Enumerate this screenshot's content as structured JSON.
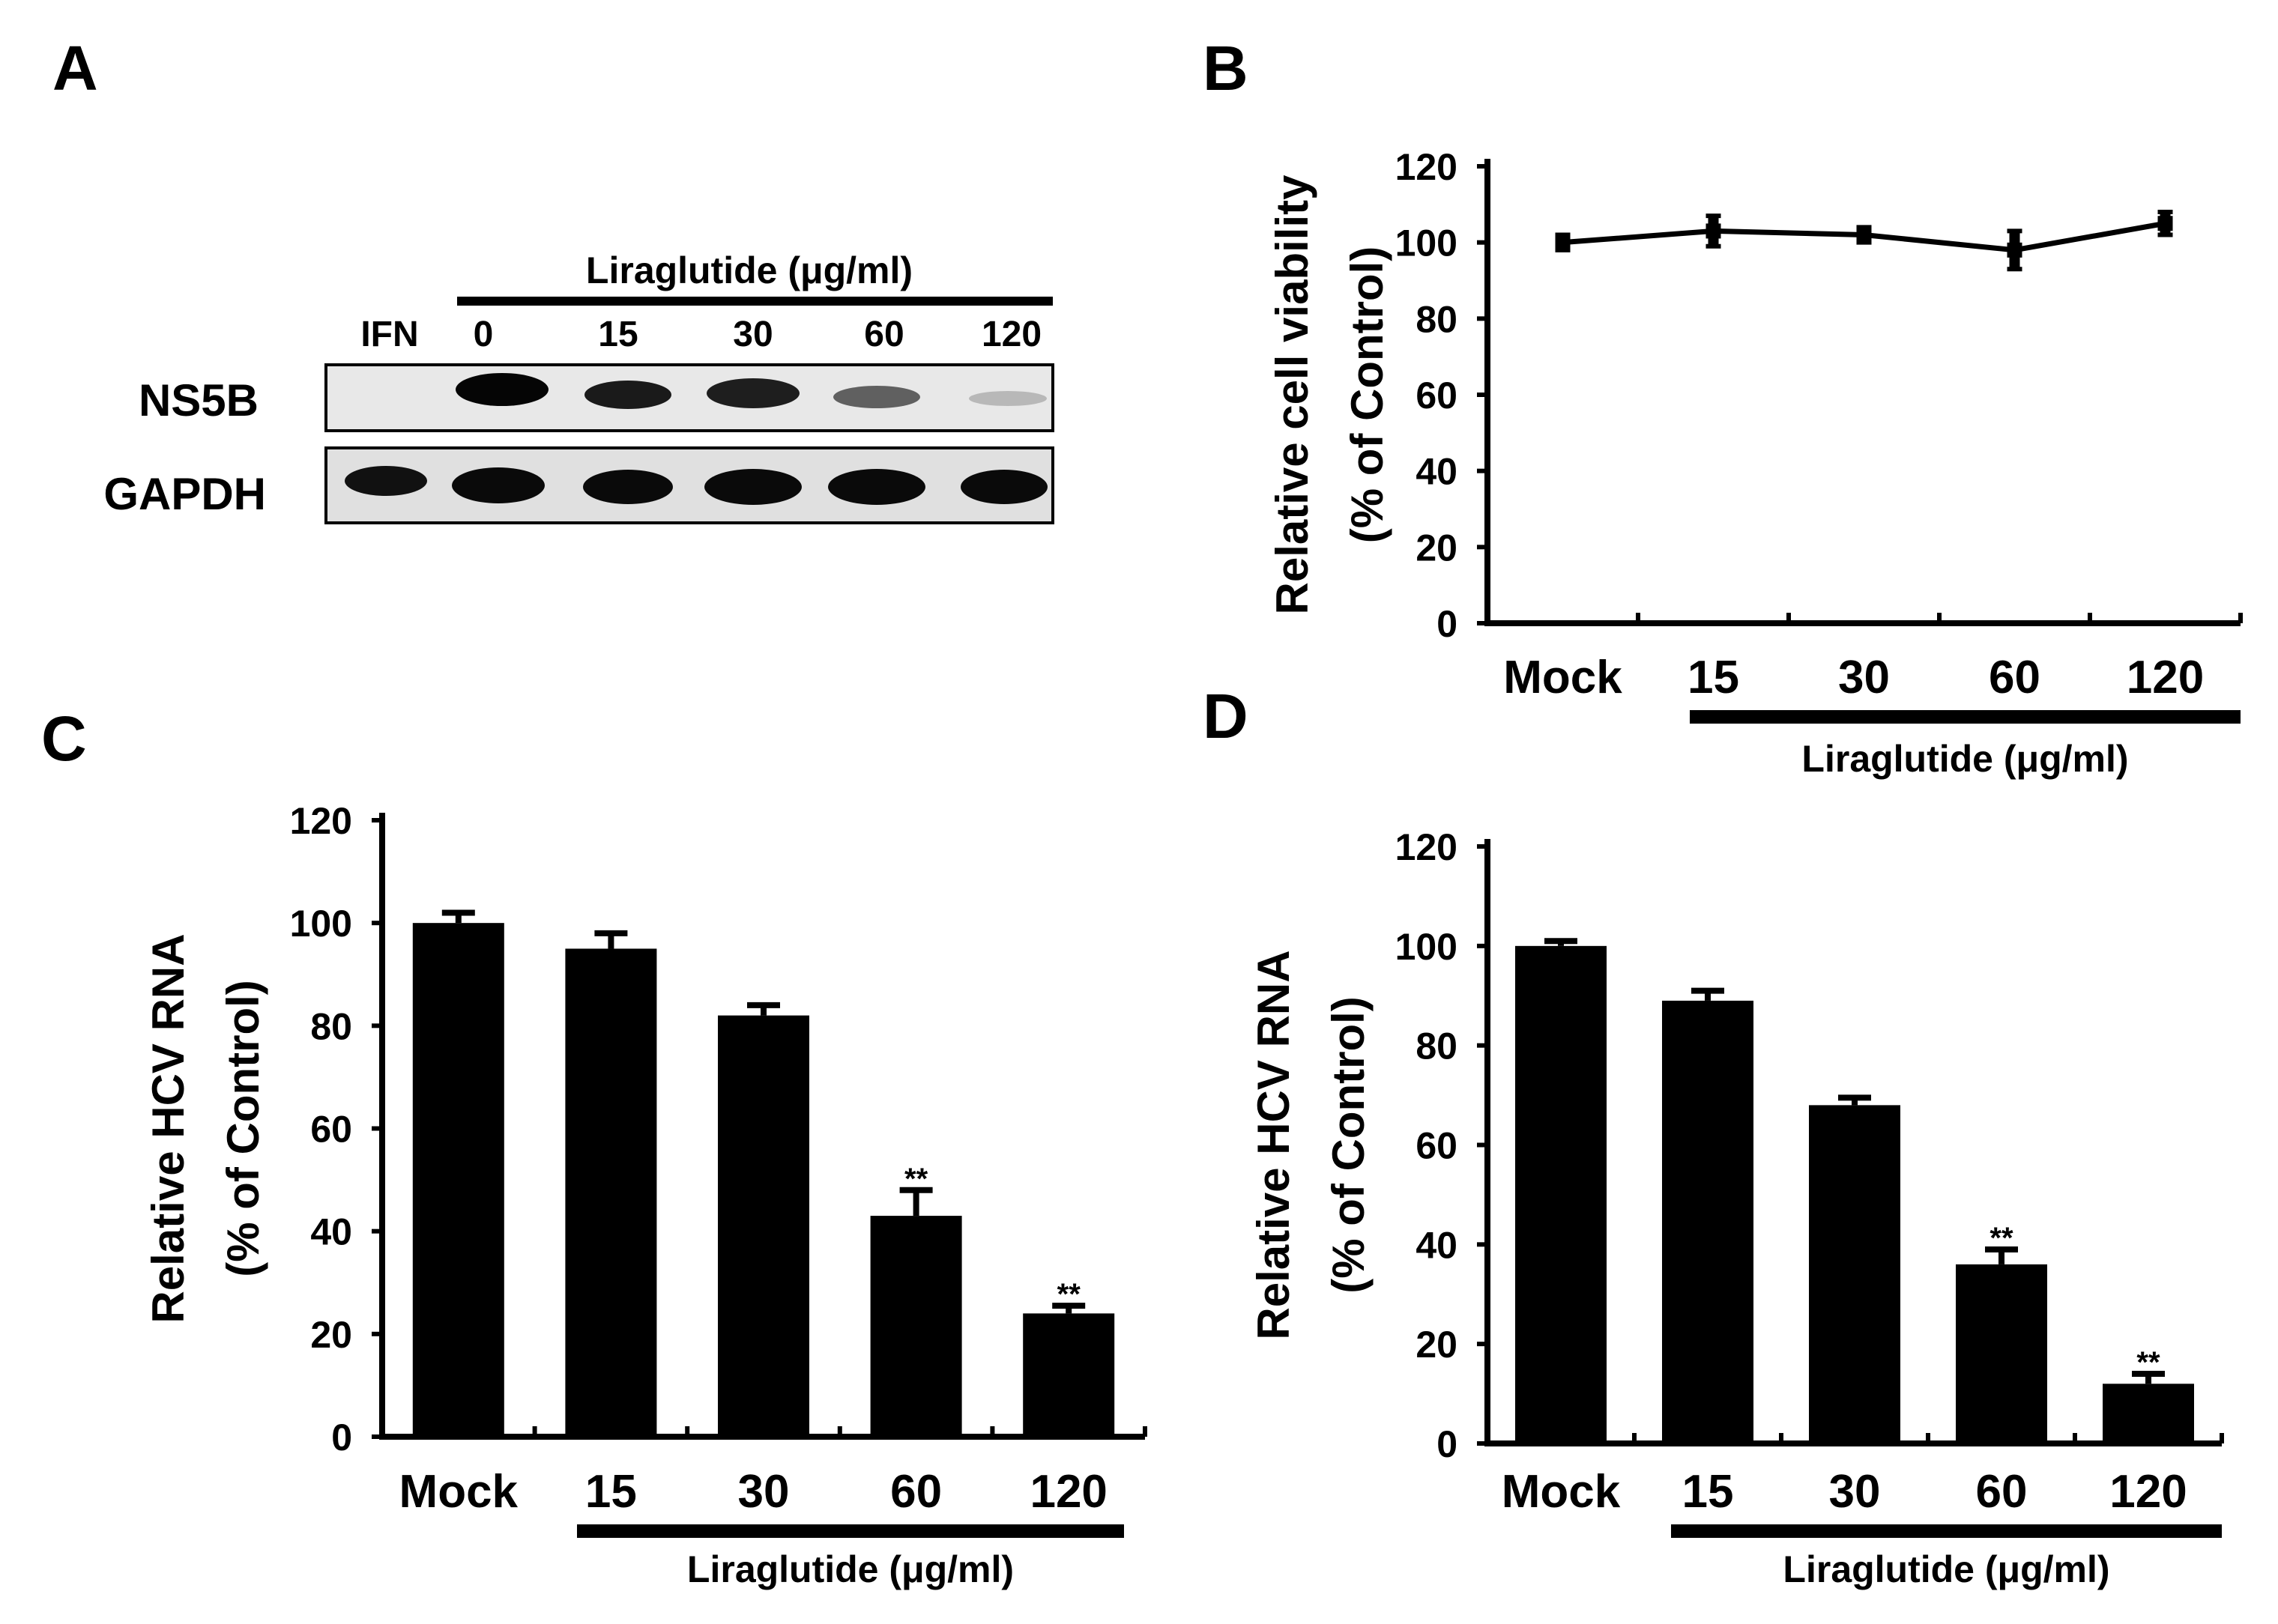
{
  "panels": {
    "a": {
      "letter": "A",
      "header": "Liraglutide (μg/ml)",
      "lanes": [
        "IFN",
        "0",
        "15",
        "30",
        "60",
        "120"
      ],
      "rows": [
        "NS5B",
        "GAPDH"
      ]
    },
    "b": {
      "letter": "B"
    },
    "c": {
      "letter": "C"
    },
    "d": {
      "letter": "D"
    }
  },
  "chart_data": [
    {
      "panel": "B",
      "type": "line",
      "title": "",
      "ylabel": [
        "Relative cell viability",
        "(% of Control)"
      ],
      "categories": [
        "Mock",
        "15",
        "30",
        "60",
        "120"
      ],
      "group_label": "Liraglutide (μg/ml)",
      "values": [
        100,
        103,
        102,
        98,
        105
      ],
      "errors": [
        2,
        4,
        2,
        5,
        3
      ],
      "ylim": [
        0,
        120
      ],
      "yticks": [
        "0",
        "20",
        "40",
        "60",
        "80",
        "100",
        "120"
      ],
      "grid": false
    },
    {
      "panel": "C",
      "type": "bar",
      "title": "",
      "ylabel": [
        "Relative HCV RNA",
        "(% of Control)"
      ],
      "categories": [
        "Mock",
        "15",
        "30",
        "60",
        "120"
      ],
      "group_label": "Liraglutide (μg/ml)",
      "values": [
        100,
        95,
        82,
        43,
        24
      ],
      "errors": [
        2,
        3,
        2,
        5,
        1.5
      ],
      "annotations": [
        "",
        "",
        "",
        "**",
        "**"
      ],
      "ylim": [
        0,
        120
      ],
      "yticks": [
        "0",
        "20",
        "40",
        "60",
        "80",
        "100",
        "120"
      ],
      "grid": false
    },
    {
      "panel": "D",
      "type": "bar",
      "title": "",
      "ylabel": [
        "Relative HCV RNA",
        "(% of Control)"
      ],
      "categories": [
        "Mock",
        "15",
        "30",
        "60",
        "120"
      ],
      "group_label": "Liraglutide (μg/ml)",
      "values": [
        100,
        89,
        68,
        36,
        12
      ],
      "errors": [
        1,
        2,
        1.5,
        3,
        2
      ],
      "annotations": [
        "",
        "",
        "",
        "**",
        "**"
      ],
      "ylim": [
        0,
        120
      ],
      "yticks": [
        "0",
        "20",
        "40",
        "60",
        "80",
        "100",
        "120"
      ],
      "grid": false
    }
  ]
}
